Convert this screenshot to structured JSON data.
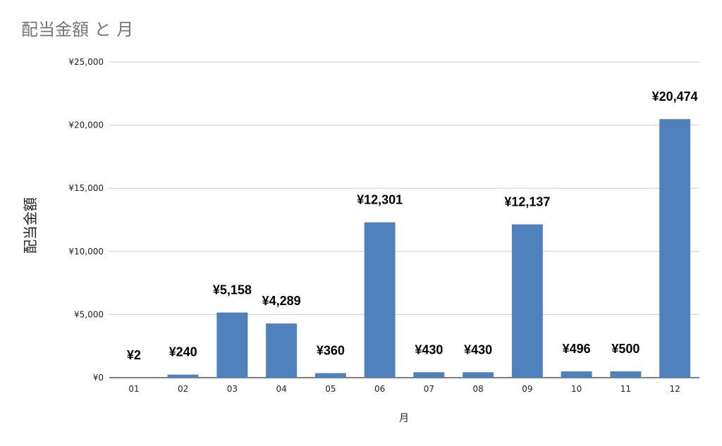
{
  "chart_data": {
    "type": "bar",
    "title": "配当金額 と 月",
    "xlabel": "月",
    "ylabel": "配当金額",
    "categories": [
      "01",
      "02",
      "03",
      "04",
      "05",
      "06",
      "07",
      "08",
      "09",
      "10",
      "11",
      "12"
    ],
    "values": [
      2,
      240,
      5158,
      4289,
      360,
      12301,
      430,
      430,
      12137,
      496,
      500,
      20474
    ],
    "data_labels": [
      "¥2",
      "¥240",
      "¥5,158",
      "¥4,289",
      "¥360",
      "¥12,301",
      "¥430",
      "¥430",
      "¥12,137",
      "¥496",
      "¥500",
      "¥20,474"
    ],
    "ylim": [
      0,
      25000
    ],
    "yticks": [
      0,
      5000,
      10000,
      15000,
      20000,
      25000
    ],
    "ytick_labels": [
      "¥0",
      "¥5,000",
      "¥10,000",
      "¥15,000",
      "¥20,000",
      "¥25,000"
    ],
    "grid": true,
    "legend": "none",
    "bar_color": "#4f81bd"
  }
}
